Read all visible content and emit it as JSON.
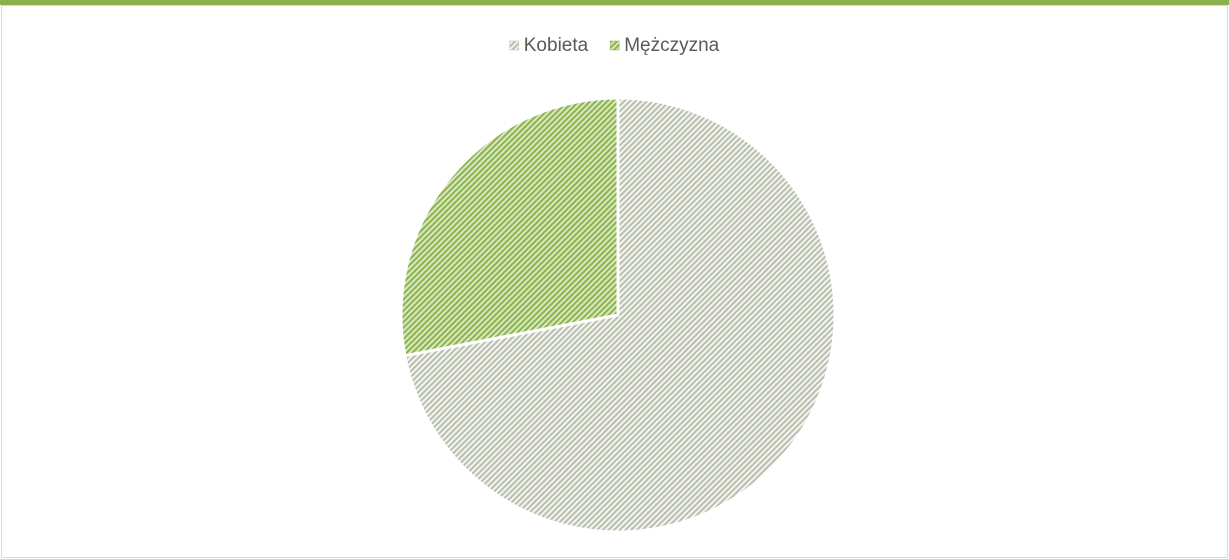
{
  "chart_data": {
    "type": "pie",
    "categories": [
      "Kobieta",
      "Mężczyzna"
    ],
    "values": [
      72,
      28
    ],
    "colors": [
      "#b9bfae",
      "#8cb350"
    ],
    "legend": "top"
  }
}
